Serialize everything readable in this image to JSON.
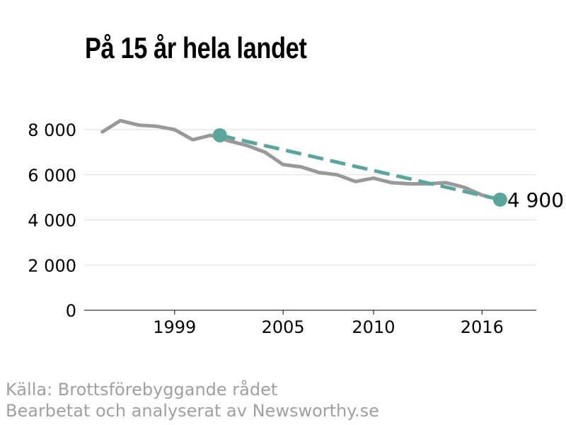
{
  "title": "På 15 år hela landet",
  "source_line": "Källa: Brottsförebyggande rådet",
  "credit_line": "Bearbetat och analyserat av Newsworthy.se",
  "colors": {
    "series": "#999999",
    "trend": "#5aa69c",
    "grid": "#dddddd",
    "axis": "#000000"
  },
  "chart_data": {
    "type": "line",
    "title": "På 15 år hela landet",
    "xlabel": "",
    "ylabel": "",
    "xlim": [
      1994,
      2019
    ],
    "ylim": [
      0,
      8000
    ],
    "x_ticks": [
      1999,
      2005,
      2010,
      2016
    ],
    "y_ticks": [
      0,
      2000,
      4000,
      6000,
      8000
    ],
    "y_tick_labels": [
      "0",
      "2 000",
      "4 000",
      "6 000",
      "8 000"
    ],
    "grid": "horizontal",
    "series": [
      {
        "x": [
          1995,
          1996,
          1997,
          1998,
          1999,
          2000,
          2001,
          2002,
          2003,
          2004,
          2005,
          2006,
          2007,
          2008,
          2009,
          2010,
          2011,
          2012,
          2013,
          2014,
          2015,
          2016,
          2017
        ],
        "values": [
          7900,
          8400,
          8200,
          8150,
          8000,
          7550,
          7750,
          7500,
          7300,
          7000,
          6450,
          6350,
          6100,
          6000,
          5700,
          5850,
          5650,
          5600,
          5600,
          5650,
          5450,
          5100,
          4900
        ]
      }
    ],
    "trend": {
      "x": [
        2001.5,
        2017
      ],
      "values": [
        7750,
        4900
      ],
      "style": "dashed"
    },
    "annotation": {
      "x": 2017,
      "value": 4900,
      "text": "4 900"
    }
  }
}
